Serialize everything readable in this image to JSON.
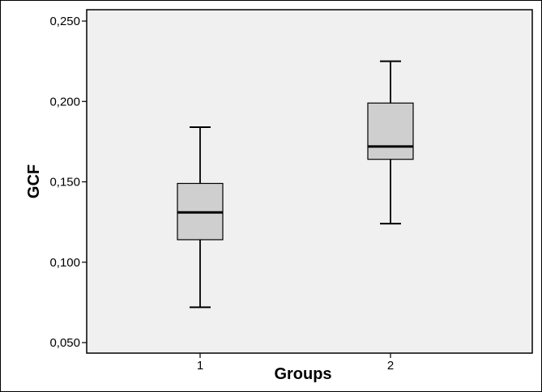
{
  "chart_data": {
    "type": "boxplot",
    "xlabel": "Groups",
    "ylabel": "GCF",
    "categories": [
      "1",
      "2"
    ],
    "ylim": [
      0.04,
      0.258
    ],
    "yticks": [
      0.05,
      0.1,
      0.15,
      0.2,
      0.25
    ],
    "ytick_labels": [
      "0,050",
      "0,100",
      "0,150",
      "0,200",
      "0,250"
    ],
    "grid": false,
    "boxes": [
      {
        "category": "1",
        "min": 0.072,
        "q1": 0.114,
        "median": 0.131,
        "q3": 0.149,
        "max": 0.184
      },
      {
        "category": "2",
        "min": 0.124,
        "q1": 0.164,
        "median": 0.172,
        "q3": 0.199,
        "max": 0.225
      }
    ],
    "colors": {
      "box_fill": "#cfcfcf",
      "plot_background": "#f0f0f0",
      "stroke": "#000000"
    }
  }
}
